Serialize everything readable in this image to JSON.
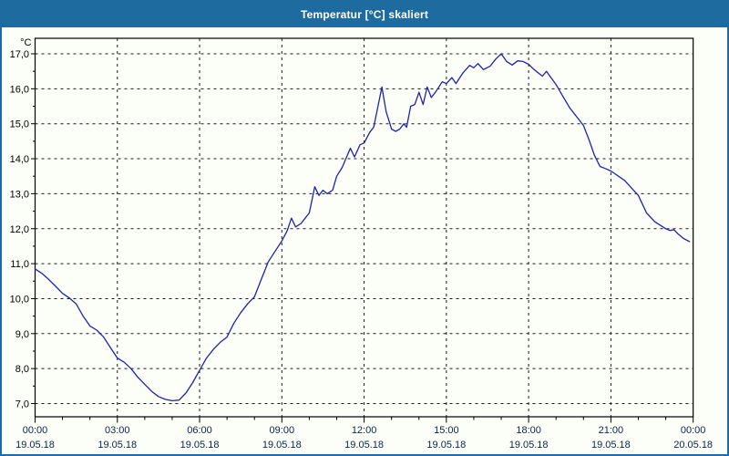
{
  "window": {
    "title": "Temperatur [°C] skaliert"
  },
  "colors": {
    "titlebar": "#1d6b9f",
    "titlebar_text": "#ffffff",
    "window_background": "#fcfef8",
    "window_border": "#1d6b9f",
    "plot_frame": "#000000",
    "gridline": "#1a1a1a",
    "series_line": "#2222aa",
    "x_tick_label": "#0a2545",
    "y_tick_label": "#000000"
  },
  "chart_data": {
    "type": "line",
    "title": "Temperatur [°C] skaliert",
    "xlabel": "",
    "ylabel": "Temperatur [°C]",
    "grid": "dashed",
    "legend": "none",
    "y_axis": {
      "unit": "°C",
      "tick_values": [
        17,
        16,
        15,
        14,
        13,
        12,
        11,
        10,
        9,
        8,
        7
      ],
      "tick_labels": [
        "17,0",
        "16,0",
        "15,0",
        "14,0",
        "13,0",
        "12,0",
        "11,0",
        "10,0",
        "9,0",
        "8,0",
        "7,0"
      ],
      "minor_tick_step": 0.5,
      "range": [
        6.65,
        17.45
      ]
    },
    "x_axis": {
      "range_hours": [
        0,
        24
      ],
      "minor_tick_hours": 1,
      "major_ticks": [
        {
          "hour": 0,
          "time": "00:00",
          "date": "19.05.18"
        },
        {
          "hour": 3,
          "time": "03:00",
          "date": "19.05.18"
        },
        {
          "hour": 6,
          "time": "06:00",
          "date": "19.05.18"
        },
        {
          "hour": 9,
          "time": "09:00",
          "date": "19.05.18"
        },
        {
          "hour": 12,
          "time": "12:00",
          "date": "19.05.18"
        },
        {
          "hour": 15,
          "time": "15:00",
          "date": "19.05.18"
        },
        {
          "hour": 18,
          "time": "18:00",
          "date": "19.05.18"
        },
        {
          "hour": 21,
          "time": "21:00",
          "date": "19.05.18"
        },
        {
          "hour": 24,
          "time": "00:00",
          "date": "20.05.18"
        }
      ]
    },
    "series": [
      {
        "name": "Temperatur",
        "color": "#2222aa",
        "points": [
          [
            0.0,
            10.85
          ],
          [
            0.25,
            10.72
          ],
          [
            0.5,
            10.55
          ],
          [
            0.75,
            10.35
          ],
          [
            1.0,
            10.15
          ],
          [
            1.25,
            10.02
          ],
          [
            1.5,
            9.85
          ],
          [
            1.75,
            9.5
          ],
          [
            2.0,
            9.22
          ],
          [
            2.25,
            9.1
          ],
          [
            2.5,
            8.9
          ],
          [
            2.75,
            8.6
          ],
          [
            3.0,
            8.3
          ],
          [
            3.25,
            8.18
          ],
          [
            3.5,
            8.0
          ],
          [
            3.75,
            7.75
          ],
          [
            4.0,
            7.55
          ],
          [
            4.25,
            7.35
          ],
          [
            4.5,
            7.2
          ],
          [
            4.75,
            7.12
          ],
          [
            5.0,
            7.08
          ],
          [
            5.25,
            7.1
          ],
          [
            5.5,
            7.3
          ],
          [
            5.75,
            7.6
          ],
          [
            6.0,
            7.95
          ],
          [
            6.25,
            8.3
          ],
          [
            6.5,
            8.55
          ],
          [
            6.75,
            8.75
          ],
          [
            7.0,
            8.9
          ],
          [
            7.25,
            9.3
          ],
          [
            7.5,
            9.6
          ],
          [
            7.75,
            9.85
          ],
          [
            8.0,
            10.05
          ],
          [
            8.25,
            10.55
          ],
          [
            8.5,
            11.05
          ],
          [
            8.75,
            11.35
          ],
          [
            9.0,
            11.65
          ],
          [
            9.2,
            11.95
          ],
          [
            9.35,
            12.3
          ],
          [
            9.5,
            12.05
          ],
          [
            9.7,
            12.15
          ],
          [
            9.85,
            12.3
          ],
          [
            10.0,
            12.45
          ],
          [
            10.2,
            13.2
          ],
          [
            10.35,
            12.95
          ],
          [
            10.5,
            13.1
          ],
          [
            10.65,
            13.0
          ],
          [
            10.85,
            13.1
          ],
          [
            11.0,
            13.5
          ],
          [
            11.2,
            13.75
          ],
          [
            11.5,
            14.3
          ],
          [
            11.65,
            14.05
          ],
          [
            11.85,
            14.4
          ],
          [
            12.0,
            14.45
          ],
          [
            12.2,
            14.75
          ],
          [
            12.35,
            14.9
          ],
          [
            12.65,
            16.05
          ],
          [
            12.8,
            15.35
          ],
          [
            13.0,
            14.85
          ],
          [
            13.15,
            14.78
          ],
          [
            13.3,
            14.85
          ],
          [
            13.45,
            15.0
          ],
          [
            13.55,
            14.9
          ],
          [
            13.7,
            15.5
          ],
          [
            13.85,
            15.55
          ],
          [
            14.0,
            15.9
          ],
          [
            14.15,
            15.55
          ],
          [
            14.3,
            16.05
          ],
          [
            14.45,
            15.75
          ],
          [
            14.6,
            15.9
          ],
          [
            14.85,
            16.2
          ],
          [
            15.0,
            16.15
          ],
          [
            15.2,
            16.32
          ],
          [
            15.35,
            16.15
          ],
          [
            15.6,
            16.45
          ],
          [
            15.85,
            16.67
          ],
          [
            16.0,
            16.6
          ],
          [
            16.15,
            16.72
          ],
          [
            16.35,
            16.55
          ],
          [
            16.6,
            16.65
          ],
          [
            16.8,
            16.85
          ],
          [
            17.0,
            17.0
          ],
          [
            17.2,
            16.78
          ],
          [
            17.4,
            16.68
          ],
          [
            17.6,
            16.8
          ],
          [
            17.8,
            16.78
          ],
          [
            18.0,
            16.7
          ],
          [
            18.2,
            16.55
          ],
          [
            18.5,
            16.36
          ],
          [
            18.65,
            16.5
          ],
          [
            19.0,
            16.12
          ],
          [
            19.2,
            15.85
          ],
          [
            19.5,
            15.45
          ],
          [
            19.8,
            15.15
          ],
          [
            20.0,
            14.95
          ],
          [
            20.2,
            14.55
          ],
          [
            20.4,
            14.1
          ],
          [
            20.6,
            13.78
          ],
          [
            20.8,
            13.72
          ],
          [
            21.0,
            13.65
          ],
          [
            21.5,
            13.38
          ],
          [
            22.0,
            12.95
          ],
          [
            22.3,
            12.45
          ],
          [
            22.6,
            12.2
          ],
          [
            23.0,
            12.0
          ],
          [
            23.15,
            11.95
          ],
          [
            23.3,
            11.97
          ],
          [
            23.45,
            11.85
          ],
          [
            23.65,
            11.72
          ],
          [
            23.87,
            11.63
          ]
        ]
      }
    ]
  }
}
